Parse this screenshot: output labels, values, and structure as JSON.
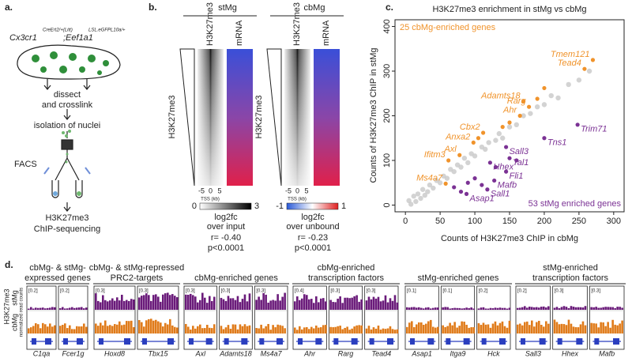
{
  "panel_a": {
    "letter": "a.",
    "genotype_1": "Cx3cr1",
    "genotype_1_sup": "CreErt2/+(Litt)",
    "genotype_2": ";Eef1a1",
    "genotype_2_sup": "LSL.eGFPL10a/+",
    "step_1": "dissect",
    "step_1b": "and crosslink",
    "step_2": "isolation of nuclei",
    "step_3": "FACS",
    "step_4": "H3K27me3",
    "step_4b": "ChIP-sequencing"
  },
  "panel_b": {
    "letter": "b.",
    "heatmaps": [
      {
        "title": "stMg",
        "col_1": "H3K27me3",
        "col_2": "mRNA",
        "row_label": "H3K27me3",
        "x_ticks": [
          -5,
          0,
          5
        ],
        "x_label": "TSS (kb)",
        "scale_min": 0,
        "scale_max": 3,
        "scale_label_1": "log2fc",
        "scale_label_2": "over input",
        "r": "r= -0.40",
        "p": "p<0.0001"
      },
      {
        "title": "cbMg",
        "col_1": "H3K27me3",
        "col_2": "mRNA",
        "row_label": "H3K27me3",
        "x_ticks": [
          -5,
          0,
          5
        ],
        "x_label": "TSS (kb)",
        "scale_min": -1,
        "scale_max": 1,
        "scale_label_1": "log2fc",
        "scale_label_2": "over unbound",
        "r": "r= -0.23",
        "p": "p<0.0001"
      }
    ]
  },
  "panel_c": {
    "letter": "c."
  },
  "chart_data": {
    "type": "scatter",
    "title": "H3K27me3 enrichment in stMg vs cbMg",
    "x_label": "Counts of H3K27me3 ChIP in cbMg",
    "y_label": "Counts of H3K27me3 ChIP in stMg",
    "xlim": [
      -15,
      315
    ],
    "ylim": [
      -15,
      415
    ],
    "xticks": [
      0,
      50,
      100,
      150,
      200,
      250,
      300
    ],
    "yticks": [
      0,
      100,
      200,
      300,
      400
    ],
    "annotations": [
      {
        "text": "25 cbMg-enriched genes",
        "color": "#f0932b"
      },
      {
        "text": "53 stMg enriched genes",
        "color": "#7b3294"
      }
    ],
    "series": [
      {
        "color": "#c8c8c8",
        "x": [
          5,
          8,
          12,
          15,
          18,
          22,
          25,
          28,
          32,
          35,
          40,
          45,
          50,
          55,
          60,
          65,
          70,
          75,
          80,
          85,
          90,
          95,
          100,
          110,
          115,
          120,
          130,
          135,
          140,
          150,
          160,
          170,
          180,
          190,
          200,
          210,
          220,
          235,
          250,
          265
        ],
        "values": [
          10,
          2,
          20,
          8,
          25,
          15,
          35,
          22,
          30,
          45,
          38,
          55,
          50,
          65,
          60,
          80,
          75,
          90,
          85,
          105,
          95,
          115,
          110,
          130,
          125,
          140,
          145,
          160,
          150,
          175,
          180,
          200,
          205,
          220,
          225,
          245,
          240,
          270,
          280,
          300
        ]
      },
      {
        "color": "#f0932b",
        "x": [
          270,
          258,
          170,
          178,
          165,
          112,
          98,
          78,
          62,
          58,
          105,
          140,
          150,
          190,
          200
        ],
        "values": [
          325,
          305,
          232,
          220,
          200,
          162,
          140,
          112,
          100,
          48,
          150,
          175,
          185,
          238,
          262
        ],
        "labels": [
          "Tmem121",
          "Tead4",
          "Adamts18",
          "Rarg",
          "Ahr",
          "Cbx2",
          "Anxa2",
          "Axl",
          "Ifitm3",
          "Ms4a7",
          null,
          null,
          null,
          null,
          null
        ]
      },
      {
        "color": "#7b3294",
        "x": [
          248,
          200,
          145,
          150,
          122,
          145,
          128,
          118,
          88,
          70,
          90,
          100,
          110,
          130,
          160,
          80
        ],
        "values": [
          180,
          150,
          130,
          105,
          95,
          75,
          55,
          35,
          25,
          40,
          50,
          60,
          45,
          85,
          100,
          30
        ],
        "labels": [
          "Trim71",
          "Tns1",
          "Sall3",
          "Tal1",
          "Hhex",
          "Fli1",
          "Mafb",
          "Sall1",
          "Asap1",
          null,
          null,
          null,
          null,
          null,
          null,
          null
        ]
      }
    ]
  },
  "panel_d": {
    "letter": "d.",
    "row_stmg": "stMg",
    "row_cbmg": "cbMg",
    "row_mark": "H3K27me3",
    "row_units": "normalized read counts",
    "groups": [
      {
        "title_lines": [
          "cbMg- & stMg-",
          "expressed genes"
        ],
        "tracks": [
          {
            "gene": "C1qa",
            "scale": "[0.2]"
          },
          {
            "gene": "Fcer1g",
            "scale": "[0.2]"
          }
        ]
      },
      {
        "title_lines": [
          "cbMg- & stMg-repressed",
          "PRC2-targets"
        ],
        "tracks": [
          {
            "gene": "Hoxd8",
            "scale": "[0.3]"
          },
          {
            "gene": "Tbx15",
            "scale": "[0.3]"
          }
        ]
      },
      {
        "title_lines": [
          "cbMg-enriched genes"
        ],
        "tracks": [
          {
            "gene": "Axl",
            "scale": "[0.3]"
          },
          {
            "gene": "Adamts18",
            "scale": "[0.3]"
          },
          {
            "gene": "Ms4a7",
            "scale": "[0.3]"
          }
        ]
      },
      {
        "title_lines": [
          "cbMg-enriched",
          "transcription factors"
        ],
        "tracks": [
          {
            "gene": "Ahr",
            "scale": "[0.4]"
          },
          {
            "gene": "Rarg",
            "scale": "[0.3]"
          },
          {
            "gene": "Tead4",
            "scale": "[0.3]"
          }
        ]
      },
      {
        "title_lines": [
          "stMg-enriched genes"
        ],
        "tracks": [
          {
            "gene": "Asap1",
            "scale": "[0.1]"
          },
          {
            "gene": "Itga9",
            "scale": "[0.1]"
          },
          {
            "gene": "Hck",
            "scale": "[0.2]"
          }
        ]
      },
      {
        "title_lines": [
          "stMg-enriched",
          "transcription factors"
        ],
        "tracks": [
          {
            "gene": "Sall3",
            "scale": "[0.2]"
          },
          {
            "gene": "Hhex",
            "scale": "[0.3]"
          },
          {
            "gene": "Mafb",
            "scale": "[0.3]"
          }
        ]
      }
    ]
  }
}
